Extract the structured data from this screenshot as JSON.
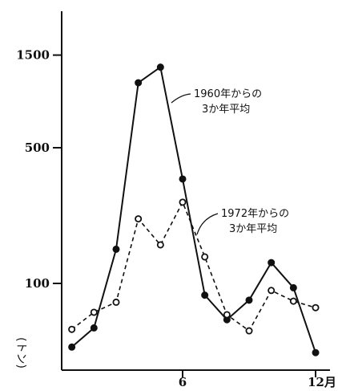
{
  "chart_data": {
    "type": "line",
    "title": "",
    "xlabel": "",
    "ylabel": "(トン)",
    "y_scale": "log",
    "x": [
      1,
      2,
      3,
      4,
      5,
      6,
      7,
      8,
      9,
      10,
      11,
      12
    ],
    "x_ticks": [
      {
        "value": 6,
        "label": "6"
      },
      {
        "value": 12,
        "label": "12月"
      }
    ],
    "y_ticks": [
      {
        "value": 100,
        "label": "100"
      },
      {
        "value": 500,
        "label": "500"
      },
      {
        "value": 1500,
        "label": "1500"
      }
    ],
    "ylim": [
      42,
      1600
    ],
    "series": [
      {
        "label": "1960年からの\n3か年平均",
        "style": "solid",
        "marker": "filled",
        "color": "#111111",
        "values": [
          47,
          59,
          150,
          1080,
          1300,
          345,
          87,
          65,
          82,
          128,
          95,
          44
        ]
      },
      {
        "label": "1972年からの\n3か年平均",
        "style": "dashed",
        "marker": "hollow",
        "color": "#111111",
        "values": [
          58,
          71,
          80,
          215,
          158,
          262,
          137,
          69,
          57,
          92,
          81,
          75
        ]
      }
    ],
    "annotations": [
      {
        "series": 0,
        "line1": "1960年からの",
        "line2": "3か年平均"
      },
      {
        "series": 1,
        "line1": "1972年からの",
        "line2": "3か年平均"
      }
    ]
  }
}
